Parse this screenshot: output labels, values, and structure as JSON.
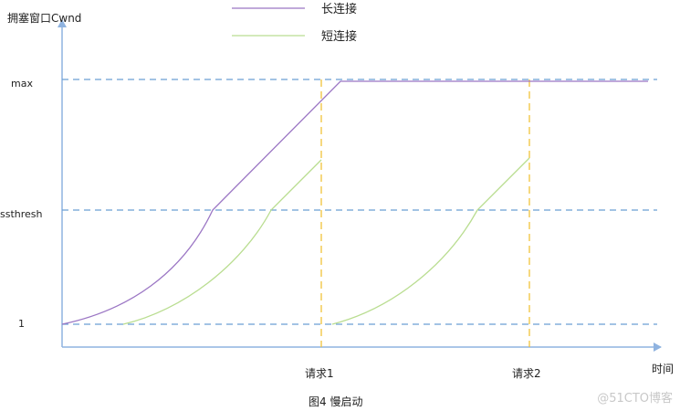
{
  "diagram": {
    "y_axis_title": "拥塞窗口Cwnd",
    "x_axis_title": "时间",
    "caption": "图4 慢启动",
    "legend": [
      {
        "label": "长连接",
        "color": "#9b76c4"
      },
      {
        "label": "短连接",
        "color": "#b9dd90"
      }
    ],
    "levels": {
      "max": "max",
      "ssthresh": "ssthresh",
      "one": "1"
    },
    "events": [
      "请求1",
      "请求2"
    ],
    "colors": {
      "axis": "#8fb3e0",
      "guide_dash": "#6a9fd4",
      "event_dash": "#f0c23a",
      "long": "#9b76c4",
      "short": "#b9dd90"
    }
  },
  "watermark": "@51CTO博客"
}
